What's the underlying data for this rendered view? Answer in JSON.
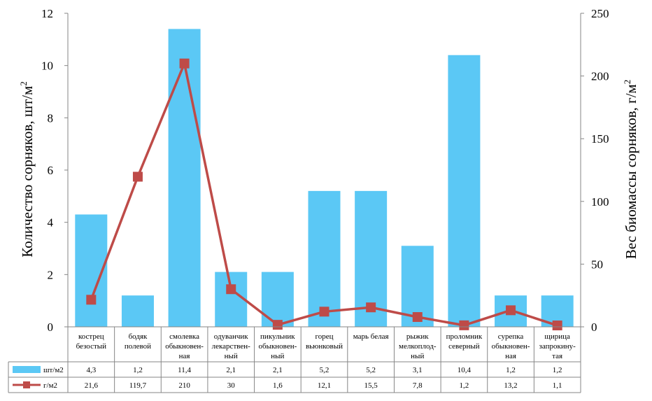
{
  "chart_data": {
    "type": "bar",
    "categories": [
      [
        "кострец",
        "безостый"
      ],
      [
        "бодяк",
        "полевой"
      ],
      [
        "смолевка",
        "обыкновен-",
        "ная"
      ],
      [
        "одуванчик",
        "лекарствен-",
        "ный"
      ],
      [
        "пикульник",
        "обыкновен-",
        "ный"
      ],
      [
        "горец",
        "вьюнковый"
      ],
      [
        "марь белая"
      ],
      [
        "рыжик",
        "мелкоплод-",
        "ный"
      ],
      [
        "проломник",
        "северный"
      ],
      [
        "сурепка",
        "обыкновен-",
        "ная"
      ],
      [
        "щирица",
        "запрокину-",
        "тая"
      ]
    ],
    "series": [
      {
        "name": "шт/м2",
        "type": "bar",
        "axis": "left",
        "color": "#5bc8f5",
        "values": [
          4.3,
          1.2,
          11.4,
          2.1,
          2.1,
          5.2,
          5.2,
          3.1,
          10.4,
          1.2,
          1.2
        ],
        "labels": [
          "4,3",
          "1,2",
          "11,4",
          "2,1",
          "2,1",
          "5,2",
          "5,2",
          "3,1",
          "10,4",
          "1,2",
          "1,2"
        ]
      },
      {
        "name": "г/м2",
        "type": "line",
        "axis": "right",
        "color": "#be4b48",
        "values": [
          21.6,
          119.7,
          210,
          30,
          1.6,
          12.1,
          15.5,
          7.8,
          1.2,
          13.2,
          1.1
        ],
        "labels": [
          "21,6",
          "119,7",
          "210",
          "30",
          "1,6",
          "12,1",
          "15,5",
          "7,8",
          "1,2",
          "13,2",
          "1,1"
        ]
      }
    ],
    "y_left": {
      "label": "Количество сорняков, шт/м",
      "label_sup": "2",
      "ylim": [
        0,
        12
      ],
      "ticks": [
        0,
        2,
        4,
        6,
        8,
        10,
        12
      ]
    },
    "y_right": {
      "label": "Вес биомассы сорняков, г/м",
      "label_sup": "2",
      "ylim": [
        0,
        250
      ],
      "ticks": [
        0,
        50,
        100,
        150,
        200,
        250
      ]
    },
    "grid": false,
    "legend": "data-table-below"
  }
}
